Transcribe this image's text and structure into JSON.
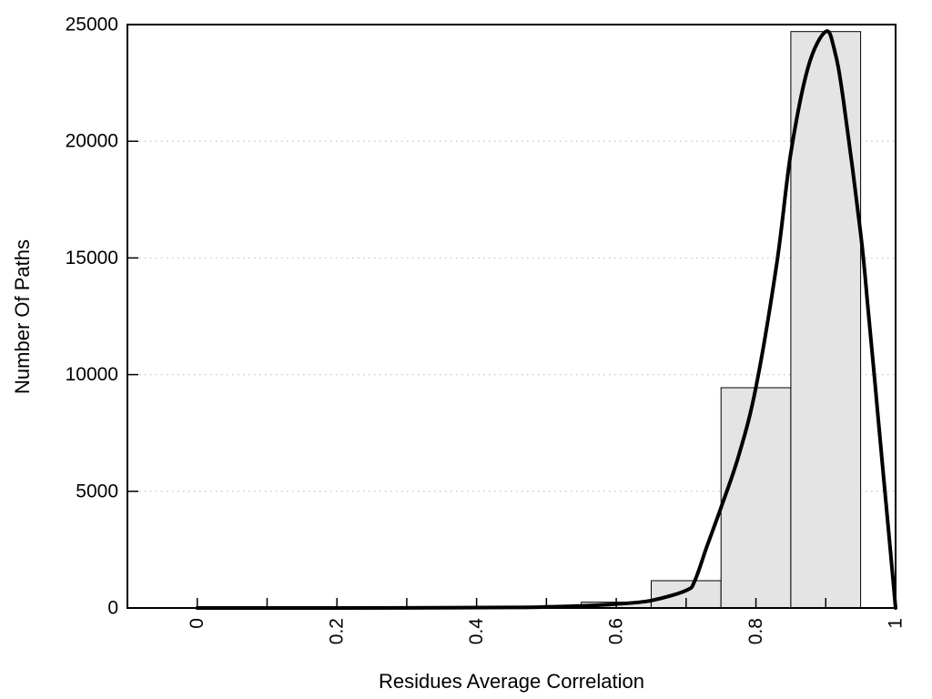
{
  "chart_data": {
    "type": "bar",
    "subtype": "histogram-with-fit-curve",
    "title": "",
    "xlabel": "Residues Average Correlation",
    "ylabel": "Number Of Paths",
    "xlim": [
      -0.1,
      1.0
    ],
    "ylim": [
      0,
      25000
    ],
    "grid": "horizontal-dotted",
    "legend": "none",
    "x_tick_positions": [
      0,
      0.1,
      0.2,
      0.3,
      0.4,
      0.5,
      0.6,
      0.7,
      0.8,
      0.9,
      1
    ],
    "x_ticks": [
      {
        "value": 0,
        "label": "0"
      },
      {
        "value": 0.2,
        "label": "0.2"
      },
      {
        "value": 0.4,
        "label": "0.4"
      },
      {
        "value": 0.6,
        "label": "0.6"
      },
      {
        "value": 0.8,
        "label": "0.8"
      },
      {
        "value": 1,
        "label": "1"
      }
    ],
    "y_ticks": [
      {
        "value": 0,
        "label": "0"
      },
      {
        "value": 5000,
        "label": "5000"
      },
      {
        "value": 10000,
        "label": "10000"
      },
      {
        "value": 15000,
        "label": "15000"
      },
      {
        "value": 20000,
        "label": "20000"
      },
      {
        "value": 25000,
        "label": "25000"
      }
    ],
    "histogram": {
      "bin_edges": [
        0.55,
        0.65,
        0.75,
        0.85,
        0.95
      ],
      "counts": [
        250,
        1170,
        9440,
        24700
      ],
      "fill_color": "#e4e4e4",
      "stroke_color": "#000000",
      "stroke_width": 1
    },
    "fit_curve": {
      "name": "distribution-fit",
      "color": "#000000",
      "stroke_width": 4,
      "points": [
        [
          0,
          0
        ],
        [
          0.3,
          5
        ],
        [
          0.45,
          25
        ],
        [
          0.5,
          45
        ],
        [
          0.55,
          90
        ],
        [
          0.6,
          170
        ],
        [
          0.65,
          320
        ],
        [
          0.7,
          750
        ],
        [
          0.7125,
          1170
        ],
        [
          0.73,
          2650
        ],
        [
          0.75,
          4300
        ],
        [
          0.775,
          6500
        ],
        [
          0.8,
          9450
        ],
        [
          0.83,
          14800
        ],
        [
          0.85,
          19500
        ],
        [
          0.875,
          23200
        ],
        [
          0.9,
          24700
        ],
        [
          0.9125,
          23900
        ],
        [
          0.925,
          21800
        ],
        [
          0.95,
          16050
        ],
        [
          0.96,
          13000
        ],
        [
          0.97,
          9800
        ],
        [
          0.98,
          6500
        ],
        [
          0.99,
          3300
        ],
        [
          1,
          0
        ]
      ]
    },
    "colors": {
      "grid": "#c8c8c8",
      "axis": "#000000",
      "background": "#ffffff",
      "text": "#000000"
    }
  }
}
